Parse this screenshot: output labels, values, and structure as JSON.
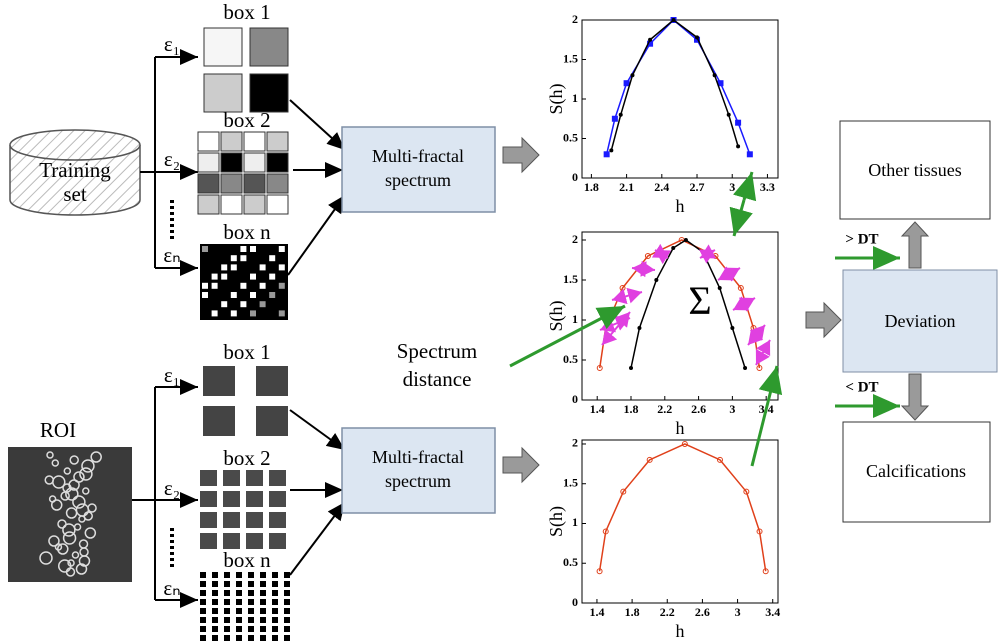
{
  "top_branch": {
    "boxes": [
      "box 1",
      "box 2",
      "box n"
    ],
    "scales": [
      "ε₁",
      "ε₂",
      "εₙ"
    ],
    "input": [
      "Training",
      "set"
    ],
    "process": [
      "Multi-fractal",
      "spectrum"
    ]
  },
  "bottom_branch": {
    "boxes": [
      "box 1",
      "box 2",
      "box n"
    ],
    "scales": [
      "ε₁",
      "ε₂",
      "εₙ"
    ],
    "input": "ROI",
    "process": [
      "Multi-fractal",
      "spectrum"
    ]
  },
  "spectrum_distance": [
    "Spectrum",
    "distance"
  ],
  "sum_symbol": "Σ",
  "other_tissues": "Other tissues",
  "deviation": "Deviation",
  "calcifications": "Calcifications",
  "threshold_above": "> DT",
  "threshold_below": "< DT",
  "plots": [
    {
      "xlabel": "h",
      "ylabel": "S(h)",
      "xlim": [
        1.72,
        3.39
      ],
      "ylim": [
        0,
        2
      ],
      "xticks": [
        1.8,
        2.1,
        2.4,
        2.7,
        3,
        3.3
      ],
      "yticks": [
        0,
        0.5,
        1,
        1.5,
        2
      ],
      "series": [
        {
          "color": "#1a1aff",
          "marker": "square",
          "x": [
            1.93,
            2.0,
            2.1,
            2.3,
            2.5,
            2.7,
            2.9,
            3.05,
            3.15
          ],
          "y": [
            0.3,
            0.75,
            1.2,
            1.7,
            2,
            1.75,
            1.2,
            0.7,
            0.3
          ]
        },
        {
          "color": "#000000",
          "marker": "dot",
          "x": [
            1.97,
            2.05,
            2.15,
            2.3,
            2.5,
            2.7,
            2.85,
            2.97,
            3.05
          ],
          "y": [
            0.35,
            0.8,
            1.3,
            1.75,
            2,
            1.78,
            1.3,
            0.8,
            0.4
          ]
        }
      ]
    },
    {
      "xlabel": "h",
      "ylabel": "S(h)",
      "xlim": [
        1.22,
        3.54
      ],
      "ylim": [
        0,
        2.1
      ],
      "xticks": [
        1.4,
        1.8,
        2.2,
        2.6,
        3,
        3.4
      ],
      "yticks": [
        0,
        0.5,
        1,
        1.5,
        2
      ],
      "series": [
        {
          "color": "#e0401a",
          "marker": "circle",
          "x": [
            1.43,
            1.5,
            1.7,
            2.0,
            2.4,
            2.8,
            3.1,
            3.25,
            3.32
          ],
          "y": [
            0.4,
            0.9,
            1.4,
            1.8,
            2,
            1.8,
            1.4,
            0.9,
            0.4
          ]
        },
        {
          "color": "#000000",
          "marker": "dot",
          "x": [
            1.8,
            1.9,
            2.1,
            2.3,
            2.45,
            2.65,
            2.85,
            3.0,
            3.15
          ],
          "y": [
            0.4,
            0.9,
            1.5,
            1.9,
            2,
            1.85,
            1.4,
            0.9,
            0.4
          ]
        }
      ]
    },
    {
      "xlabel": "h",
      "ylabel": "S(h)",
      "xlim": [
        1.23,
        3.46
      ],
      "ylim": [
        0,
        2.05
      ],
      "xticks": [
        1.4,
        1.8,
        2.2,
        2.6,
        3,
        3.4
      ],
      "yticks": [
        0,
        0.5,
        1,
        1.5,
        2
      ],
      "series": [
        {
          "color": "#e0401a",
          "marker": "circle",
          "x": [
            1.43,
            1.5,
            1.7,
            2.0,
            2.4,
            2.8,
            3.1,
            3.25,
            3.32
          ],
          "y": [
            0.4,
            0.9,
            1.4,
            1.8,
            2,
            1.8,
            1.4,
            0.9,
            0.4
          ]
        }
      ]
    }
  ]
}
